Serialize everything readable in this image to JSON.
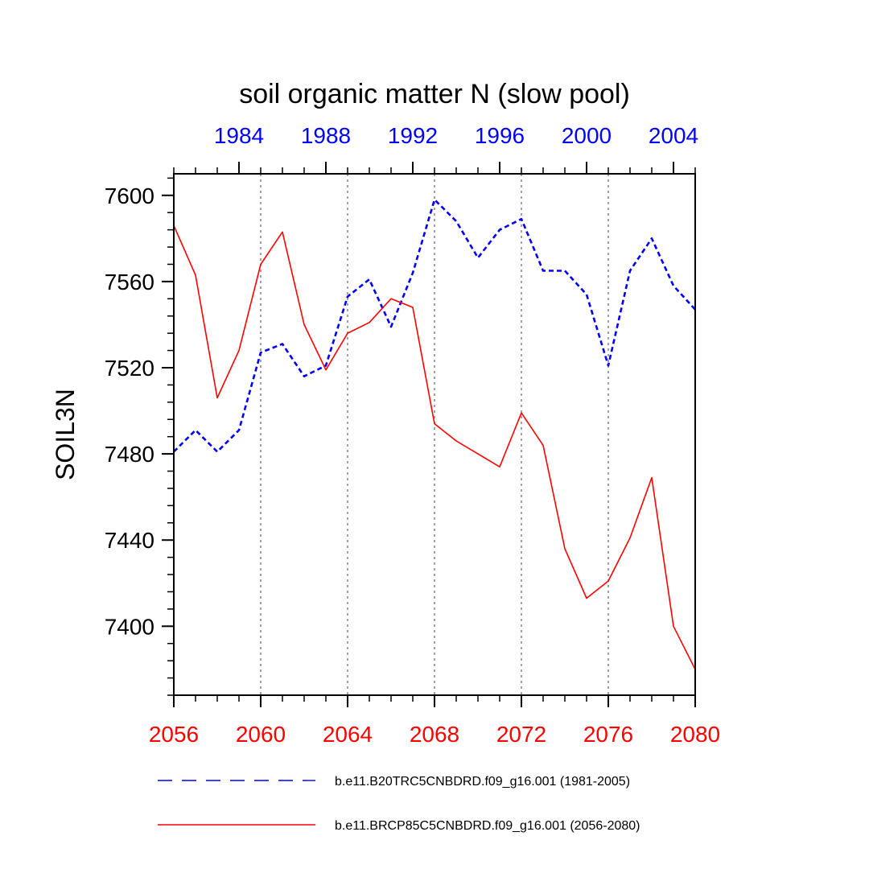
{
  "chart_data": {
    "type": "line",
    "title": "soil organic matter N (slow pool)",
    "ylabel": "SOIL3N",
    "xlabel": "",
    "ylim": [
      7368,
      7610
    ],
    "y_major_ticks": [
      7400,
      7440,
      7480,
      7520,
      7560,
      7600
    ],
    "y_minor_step": 8,
    "bottom_axis": {
      "color": "#ff0000",
      "range": [
        2056,
        2080
      ],
      "major_ticks": [
        2056,
        2060,
        2064,
        2068,
        2072,
        2076,
        2080
      ],
      "minor_step": 1
    },
    "top_axis": {
      "color": "#0000ff",
      "range": [
        1981,
        2005
      ],
      "major_ticks": [
        1984,
        1988,
        1992,
        1996,
        2000,
        2004
      ],
      "minor_step": 1
    },
    "grid": {
      "vertical_dotted": [
        2060,
        2064,
        2068,
        2072,
        2076
      ]
    },
    "legend_position": "bottom",
    "series": [
      {
        "name": "b.e11.B20TRC5CNBDRD.f09_g16.001 (1981-2005)",
        "color": "#0000ff",
        "style": "dashed",
        "axis": "top",
        "x": [
          1981,
          1982,
          1983,
          1984,
          1985,
          1986,
          1987,
          1988,
          1989,
          1990,
          1991,
          1992,
          1993,
          1994,
          1995,
          1996,
          1997,
          1998,
          1999,
          2000,
          2001,
          2002,
          2003,
          2004,
          2005
        ],
        "values": [
          7481,
          7491,
          7481,
          7491,
          7527,
          7531,
          7516,
          7521,
          7553,
          7561,
          7539,
          7564,
          7598,
          7588,
          7571,
          7584,
          7589,
          7565,
          7565,
          7554,
          7521,
          7565,
          7580,
          7558,
          7547
        ]
      },
      {
        "name": "b.e11.BRCP85C5CNBDRD.f09_g16.001 (2056-2080)",
        "color": "#ff0000",
        "style": "solid",
        "axis": "bottom",
        "x": [
          2056,
          2057,
          2058,
          2059,
          2060,
          2061,
          2062,
          2063,
          2064,
          2065,
          2066,
          2067,
          2068,
          2069,
          2070,
          2071,
          2072,
          2073,
          2074,
          2075,
          2076,
          2077,
          2078,
          2079,
          2080
        ],
        "values": [
          7586,
          7563,
          7506,
          7528,
          7568,
          7583,
          7540,
          7519,
          7536,
          7541,
          7552,
          7548,
          7494,
          7486,
          7480,
          7474,
          7499,
          7484,
          7436,
          7413,
          7421,
          7441,
          7469,
          7400,
          7380
        ]
      }
    ]
  }
}
